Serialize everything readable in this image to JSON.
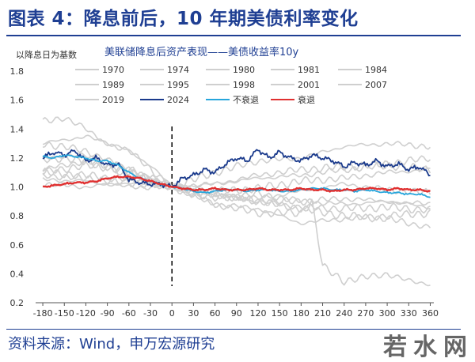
{
  "figure": {
    "title": "图表 4：降息前后，10 年期美债利率变化",
    "source": "资料来源：Wind，申万宏源研究",
    "watermark": "若水网"
  },
  "chart_data": {
    "type": "line",
    "title": "美联储降息后资产表现——美债收益率10y",
    "ylabel": "以降息日为基数",
    "xlabel": "",
    "xlim": [
      -190,
      365
    ],
    "ylim": [
      0.2,
      1.8
    ],
    "x_ticks": [
      -180,
      -150,
      -120,
      -90,
      -60,
      -30,
      0,
      30,
      60,
      90,
      120,
      150,
      180,
      210,
      240,
      270,
      300,
      330,
      360
    ],
    "y_ticks": [
      0.2,
      0.4,
      0.6,
      0.8,
      1.0,
      1.2,
      1.4,
      1.6,
      1.8
    ],
    "y_tick_labels": [
      "0.2",
      "0.4",
      "0.6",
      "0.8",
      "1.0",
      "1.2",
      "1.4",
      "1.6",
      "1.8"
    ],
    "vline_x": 0,
    "legend_position": "top",
    "colors": {
      "historical": "#cfcfcf",
      "series_2024": "#1a3a8c",
      "no_recession": "#27a6dc",
      "recession": "#e03030"
    },
    "series": [
      {
        "name": "1970",
        "color": "#cfcfcf",
        "x": [
          -180,
          -120,
          -60,
          0,
          60,
          120,
          180,
          240,
          300,
          360
        ],
        "values": [
          1.3,
          1.35,
          1.25,
          1.0,
          0.92,
          0.95,
          0.9,
          0.88,
          0.9,
          0.88
        ]
      },
      {
        "name": "1974",
        "color": "#cfcfcf",
        "x": [
          -180,
          -120,
          -60,
          0,
          60,
          120,
          180,
          240,
          300,
          360
        ],
        "values": [
          1.1,
          1.15,
          1.12,
          1.0,
          1.02,
          1.06,
          1.08,
          1.12,
          1.15,
          1.12
        ]
      },
      {
        "name": "1980",
        "color": "#cfcfcf",
        "x": [
          -180,
          -150,
          -120,
          -90,
          -60,
          -30,
          0,
          60,
          120,
          180,
          195,
          210,
          240,
          300,
          330,
          360
        ],
        "values": [
          1.45,
          1.48,
          1.4,
          1.3,
          1.25,
          1.15,
          1.0,
          0.88,
          0.82,
          0.82,
          0.9,
          0.45,
          0.35,
          0.4,
          0.35,
          0.33
        ]
      },
      {
        "name": "1981",
        "color": "#cfcfcf",
        "x": [
          -180,
          -120,
          -60,
          0,
          60,
          120,
          180,
          240,
          300,
          360
        ],
        "values": [
          1.2,
          1.22,
          1.12,
          1.0,
          1.1,
          1.18,
          1.2,
          1.28,
          1.3,
          1.28
        ]
      },
      {
        "name": "1984",
        "color": "#cfcfcf",
        "x": [
          -180,
          -120,
          -60,
          0,
          60,
          120,
          180,
          240,
          300,
          360
        ],
        "values": [
          1.2,
          1.18,
          1.08,
          1.0,
          0.95,
          0.9,
          0.86,
          0.85,
          0.86,
          0.84
        ]
      },
      {
        "name": "1989",
        "color": "#cfcfcf",
        "x": [
          -180,
          -120,
          -60,
          0,
          60,
          120,
          180,
          240,
          300,
          360
        ],
        "values": [
          1.02,
          1.0,
          1.03,
          1.0,
          0.97,
          0.99,
          1.04,
          1.06,
          1.1,
          1.12
        ]
      },
      {
        "name": "1995",
        "color": "#cfcfcf",
        "x": [
          -180,
          -120,
          -60,
          0,
          60,
          120,
          180,
          240,
          300,
          360
        ],
        "values": [
          1.12,
          1.18,
          1.1,
          1.0,
          0.94,
          0.92,
          0.97,
          1.02,
          0.98,
          0.96
        ]
      },
      {
        "name": "1998",
        "color": "#cfcfcf",
        "x": [
          -180,
          -120,
          -60,
          0,
          60,
          120,
          180,
          240,
          300,
          360
        ],
        "values": [
          1.1,
          1.08,
          1.05,
          1.0,
          1.02,
          1.08,
          1.12,
          1.14,
          1.16,
          1.2
        ]
      },
      {
        "name": "2001",
        "color": "#cfcfcf",
        "x": [
          -180,
          -120,
          -60,
          0,
          60,
          120,
          180,
          240,
          300,
          360
        ],
        "values": [
          1.05,
          1.04,
          1.0,
          1.0,
          0.95,
          0.9,
          0.9,
          0.92,
          0.9,
          0.86
        ]
      },
      {
        "name": "2007",
        "color": "#cfcfcf",
        "x": [
          -180,
          -120,
          -60,
          0,
          60,
          120,
          180,
          240,
          300,
          360
        ],
        "values": [
          1.08,
          1.06,
          1.03,
          1.0,
          0.88,
          0.85,
          0.75,
          0.78,
          0.8,
          0.82
        ]
      },
      {
        "name": "2019",
        "color": "#cfcfcf",
        "x": [
          -180,
          -120,
          -60,
          0,
          60,
          120,
          180,
          240,
          300,
          360
        ],
        "values": [
          1.3,
          1.25,
          1.12,
          1.0,
          0.95,
          0.9,
          0.85,
          0.8,
          0.78,
          0.72
        ]
      },
      {
        "name": "2024",
        "color": "#1a3a8c",
        "x": [
          -180,
          -165,
          -150,
          -135,
          -120,
          -105,
          -90,
          -75,
          -60,
          -45,
          -30,
          -15,
          0,
          15,
          30,
          45,
          60,
          75,
          90,
          105,
          120,
          135,
          150,
          165,
          180,
          195,
          210,
          225,
          240,
          255,
          270,
          285,
          300,
          315,
          330,
          345,
          360
        ],
        "values": [
          1.2,
          1.24,
          1.22,
          1.25,
          1.18,
          1.2,
          1.15,
          1.16,
          1.05,
          1.03,
          1.02,
          1.02,
          1.0,
          1.06,
          1.08,
          1.12,
          1.1,
          1.16,
          1.2,
          1.18,
          1.26,
          1.2,
          1.24,
          1.2,
          1.18,
          1.22,
          1.2,
          1.18,
          1.14,
          1.17,
          1.15,
          1.18,
          1.14,
          1.16,
          1.12,
          1.14,
          1.08
        ]
      },
      {
        "name": "不衰退",
        "color": "#27a6dc",
        "x": [
          -180,
          -165,
          -150,
          -135,
          -120,
          -105,
          -90,
          -75,
          -60,
          -45,
          -30,
          -15,
          0,
          15,
          30,
          45,
          60,
          75,
          90,
          105,
          120,
          135,
          150,
          165,
          180,
          195,
          210,
          225,
          240,
          255,
          270,
          285,
          300,
          315,
          330,
          345,
          360
        ],
        "values": [
          1.21,
          1.2,
          1.22,
          1.21,
          1.2,
          1.18,
          1.18,
          1.15,
          1.1,
          1.06,
          1.04,
          1.02,
          1.0,
          0.99,
          0.97,
          0.96,
          0.97,
          0.98,
          0.98,
          0.97,
          0.98,
          0.98,
          0.97,
          0.97,
          0.98,
          0.99,
          0.99,
          0.98,
          0.98,
          0.97,
          0.98,
          0.97,
          0.96,
          0.96,
          0.95,
          0.95,
          0.93
        ]
      },
      {
        "name": "衰退",
        "color": "#e03030",
        "x": [
          -180,
          -165,
          -150,
          -135,
          -120,
          -105,
          -90,
          -75,
          -60,
          -45,
          -30,
          -15,
          0,
          15,
          30,
          45,
          60,
          75,
          90,
          105,
          120,
          135,
          150,
          165,
          180,
          195,
          210,
          225,
          240,
          255,
          270,
          285,
          300,
          315,
          330,
          345,
          360
        ],
        "values": [
          1.0,
          1.01,
          1.02,
          1.03,
          1.03,
          1.04,
          1.06,
          1.07,
          1.07,
          1.06,
          1.04,
          1.02,
          1.0,
          0.99,
          0.98,
          0.98,
          0.99,
          0.98,
          0.98,
          0.98,
          0.99,
          0.98,
          0.98,
          0.98,
          0.99,
          0.98,
          0.98,
          0.97,
          0.98,
          0.98,
          0.99,
          0.99,
          0.98,
          0.99,
          0.98,
          0.98,
          0.97
        ]
      }
    ]
  }
}
